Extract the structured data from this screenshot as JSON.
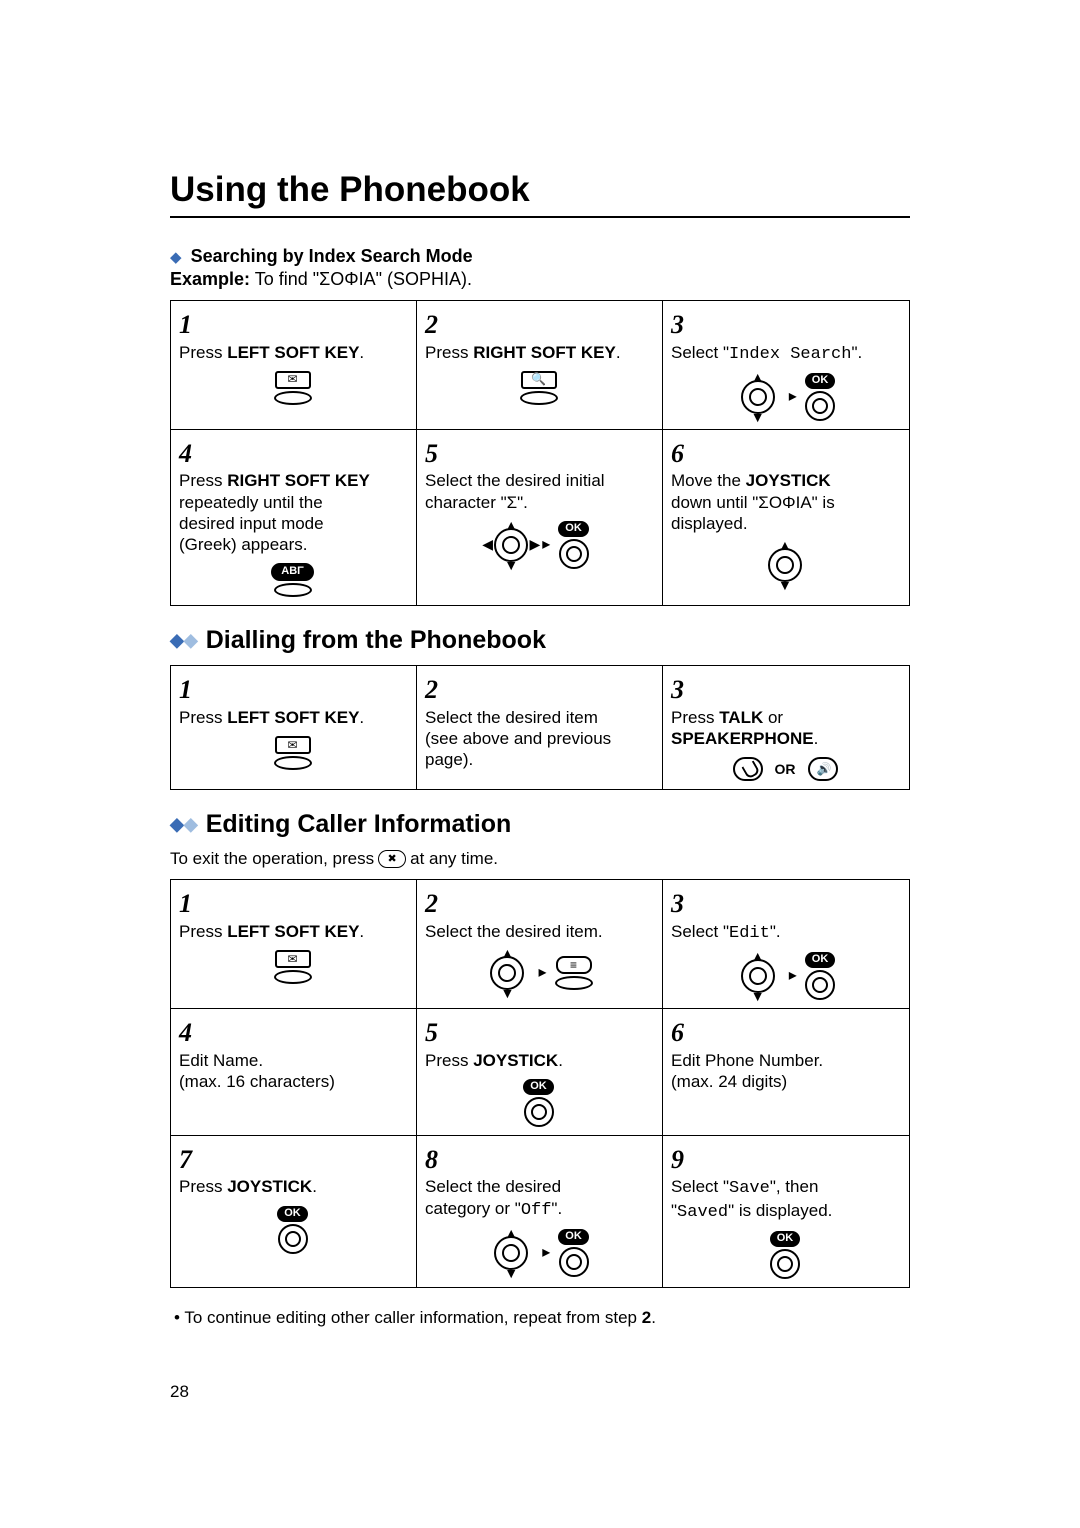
{
  "title": "Using the Phonebook",
  "search_section": {
    "heading": "Searching by Index Search Mode",
    "example_prefix": "Example:",
    "example_text": "To find \"ΣΟΦΙΑ\" (SOPHIA).",
    "steps": [
      {
        "n": "1",
        "pre": "Press ",
        "bold": "LEFT SOFT KEY",
        "post": "."
      },
      {
        "n": "2",
        "pre": "Press ",
        "bold": "RIGHT SOFT KEY",
        "post": "."
      },
      {
        "n": "3",
        "pre": "Select \"",
        "mono": "Index Search",
        "post": "\"."
      },
      {
        "n": "4",
        "pre": "Press ",
        "bold": "RIGHT SOFT KEY",
        "post": " repeatedly until the desired input mode (Greek) appears."
      },
      {
        "n": "5",
        "text": "Select the desired initial character \"Σ\"."
      },
      {
        "n": "6",
        "pre": "Move the ",
        "bold": "JOYSTICK",
        "post": " down until \"ΣΟΦΙΑ\" is displayed."
      }
    ],
    "abc_label": "ΑΒΓ"
  },
  "dial_section": {
    "heading": "Dialling from the Phonebook",
    "steps": [
      {
        "n": "1",
        "pre": "Press ",
        "bold": "LEFT SOFT KEY",
        "post": "."
      },
      {
        "n": "2",
        "text": "Select the desired item (see above and previous page)."
      },
      {
        "n": "3",
        "pre": "Press ",
        "bold1": "TALK",
        "mid": " or ",
        "bold2": "SPEAKERPHONE",
        "post": "."
      }
    ],
    "or_label": "OR"
  },
  "edit_section": {
    "heading": "Editing Caller Information",
    "exit_pre": "To exit the operation, press",
    "exit_post": "at any time.",
    "steps": [
      {
        "n": "1",
        "pre": "Press ",
        "bold": "LEFT SOFT KEY",
        "post": "."
      },
      {
        "n": "2",
        "text": "Select the desired item."
      },
      {
        "n": "3",
        "pre": "Select \"",
        "mono": "Edit",
        "post": "\"."
      },
      {
        "n": "4",
        "text": "Edit Name.\n(max. 16 characters)"
      },
      {
        "n": "5",
        "pre": "Press ",
        "bold": "JOYSTICK",
        "post": "."
      },
      {
        "n": "6",
        "text": "Edit Phone Number.\n(max. 24 digits)"
      },
      {
        "n": "7",
        "pre": "Press ",
        "bold": "JOYSTICK",
        "post": "."
      },
      {
        "n": "8",
        "pre": "Select the desired category or \"",
        "mono": "Off",
        "post": "\"."
      },
      {
        "n": "9",
        "pre": "Select \"",
        "mono": "Save",
        "mid": "\", then \"",
        "mono2": "Saved",
        "post": "\" is displayed."
      }
    ]
  },
  "ok_label": "OK",
  "footnote": "To continue editing other caller information, repeat from step 2.",
  "footnote_bold": "2",
  "page_number": "28",
  "colors": {
    "diamond_primary": "#3a6cb5",
    "diamond_secondary": "#9fbde0"
  }
}
